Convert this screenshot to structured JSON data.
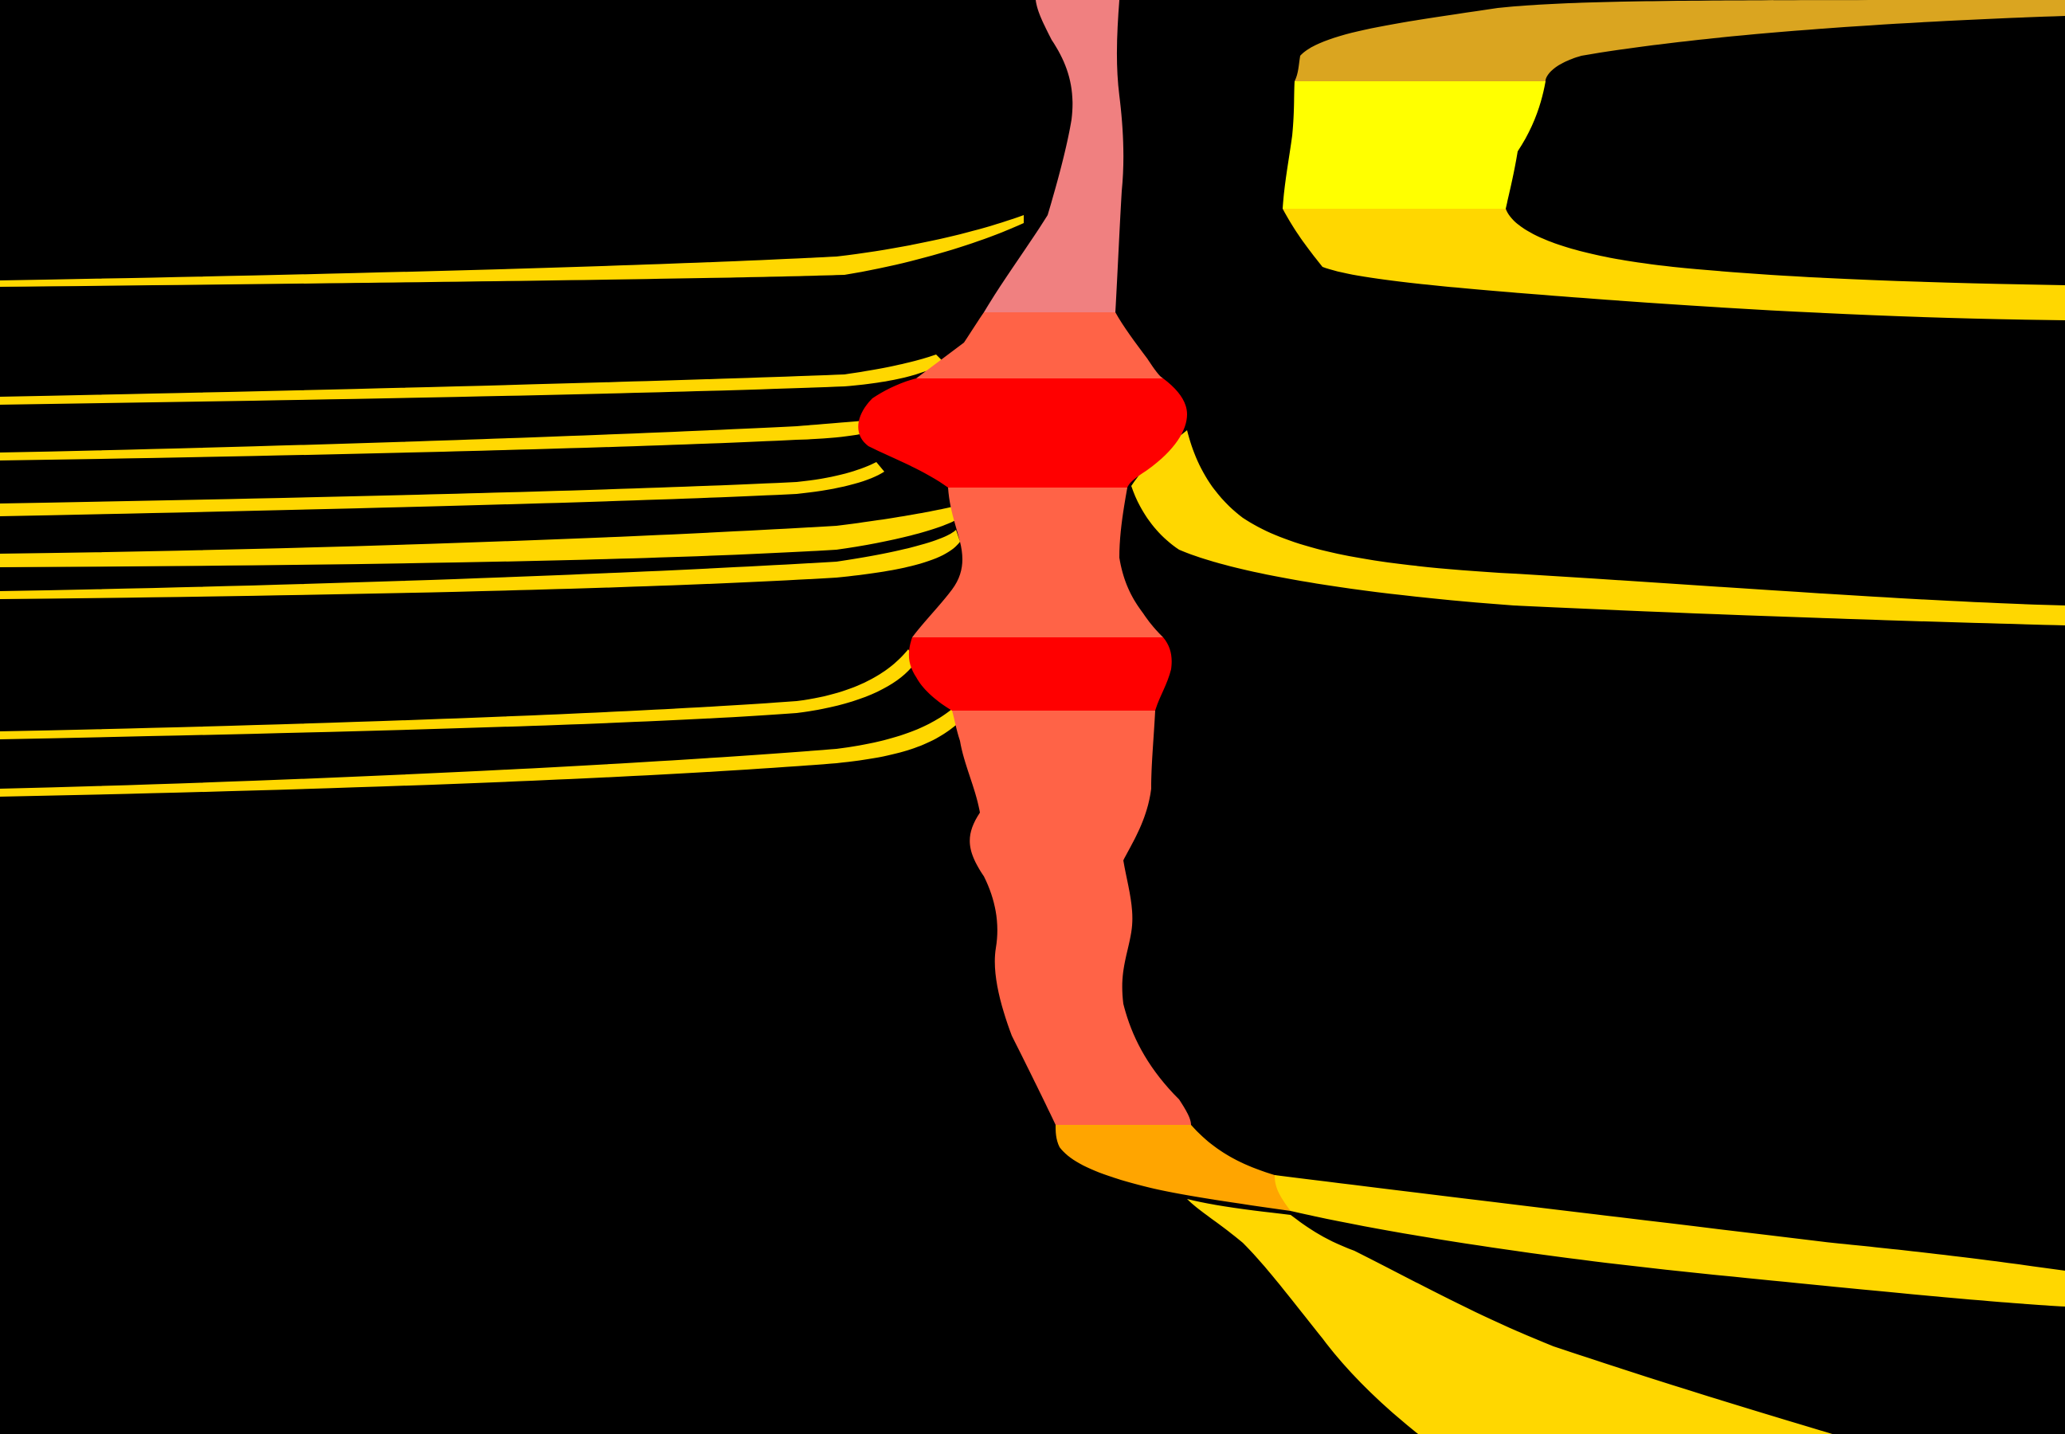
{
  "colors": {
    "background": "#000000",
    "light_coral": "#f08080",
    "tomato": "#ff6347",
    "red": "#ff0000",
    "gold": "#ffd700",
    "yellow": "#ffff00",
    "goldenrod": "#daa520",
    "orange": "#ffa500"
  },
  "regions": [
    "central-trunk-upper",
    "central-trunk-middle",
    "central-trunk-lower",
    "red-band-upper",
    "red-band-lower",
    "left-streaks",
    "right-upper-band",
    "right-middle-band",
    "right-lower-bands"
  ]
}
